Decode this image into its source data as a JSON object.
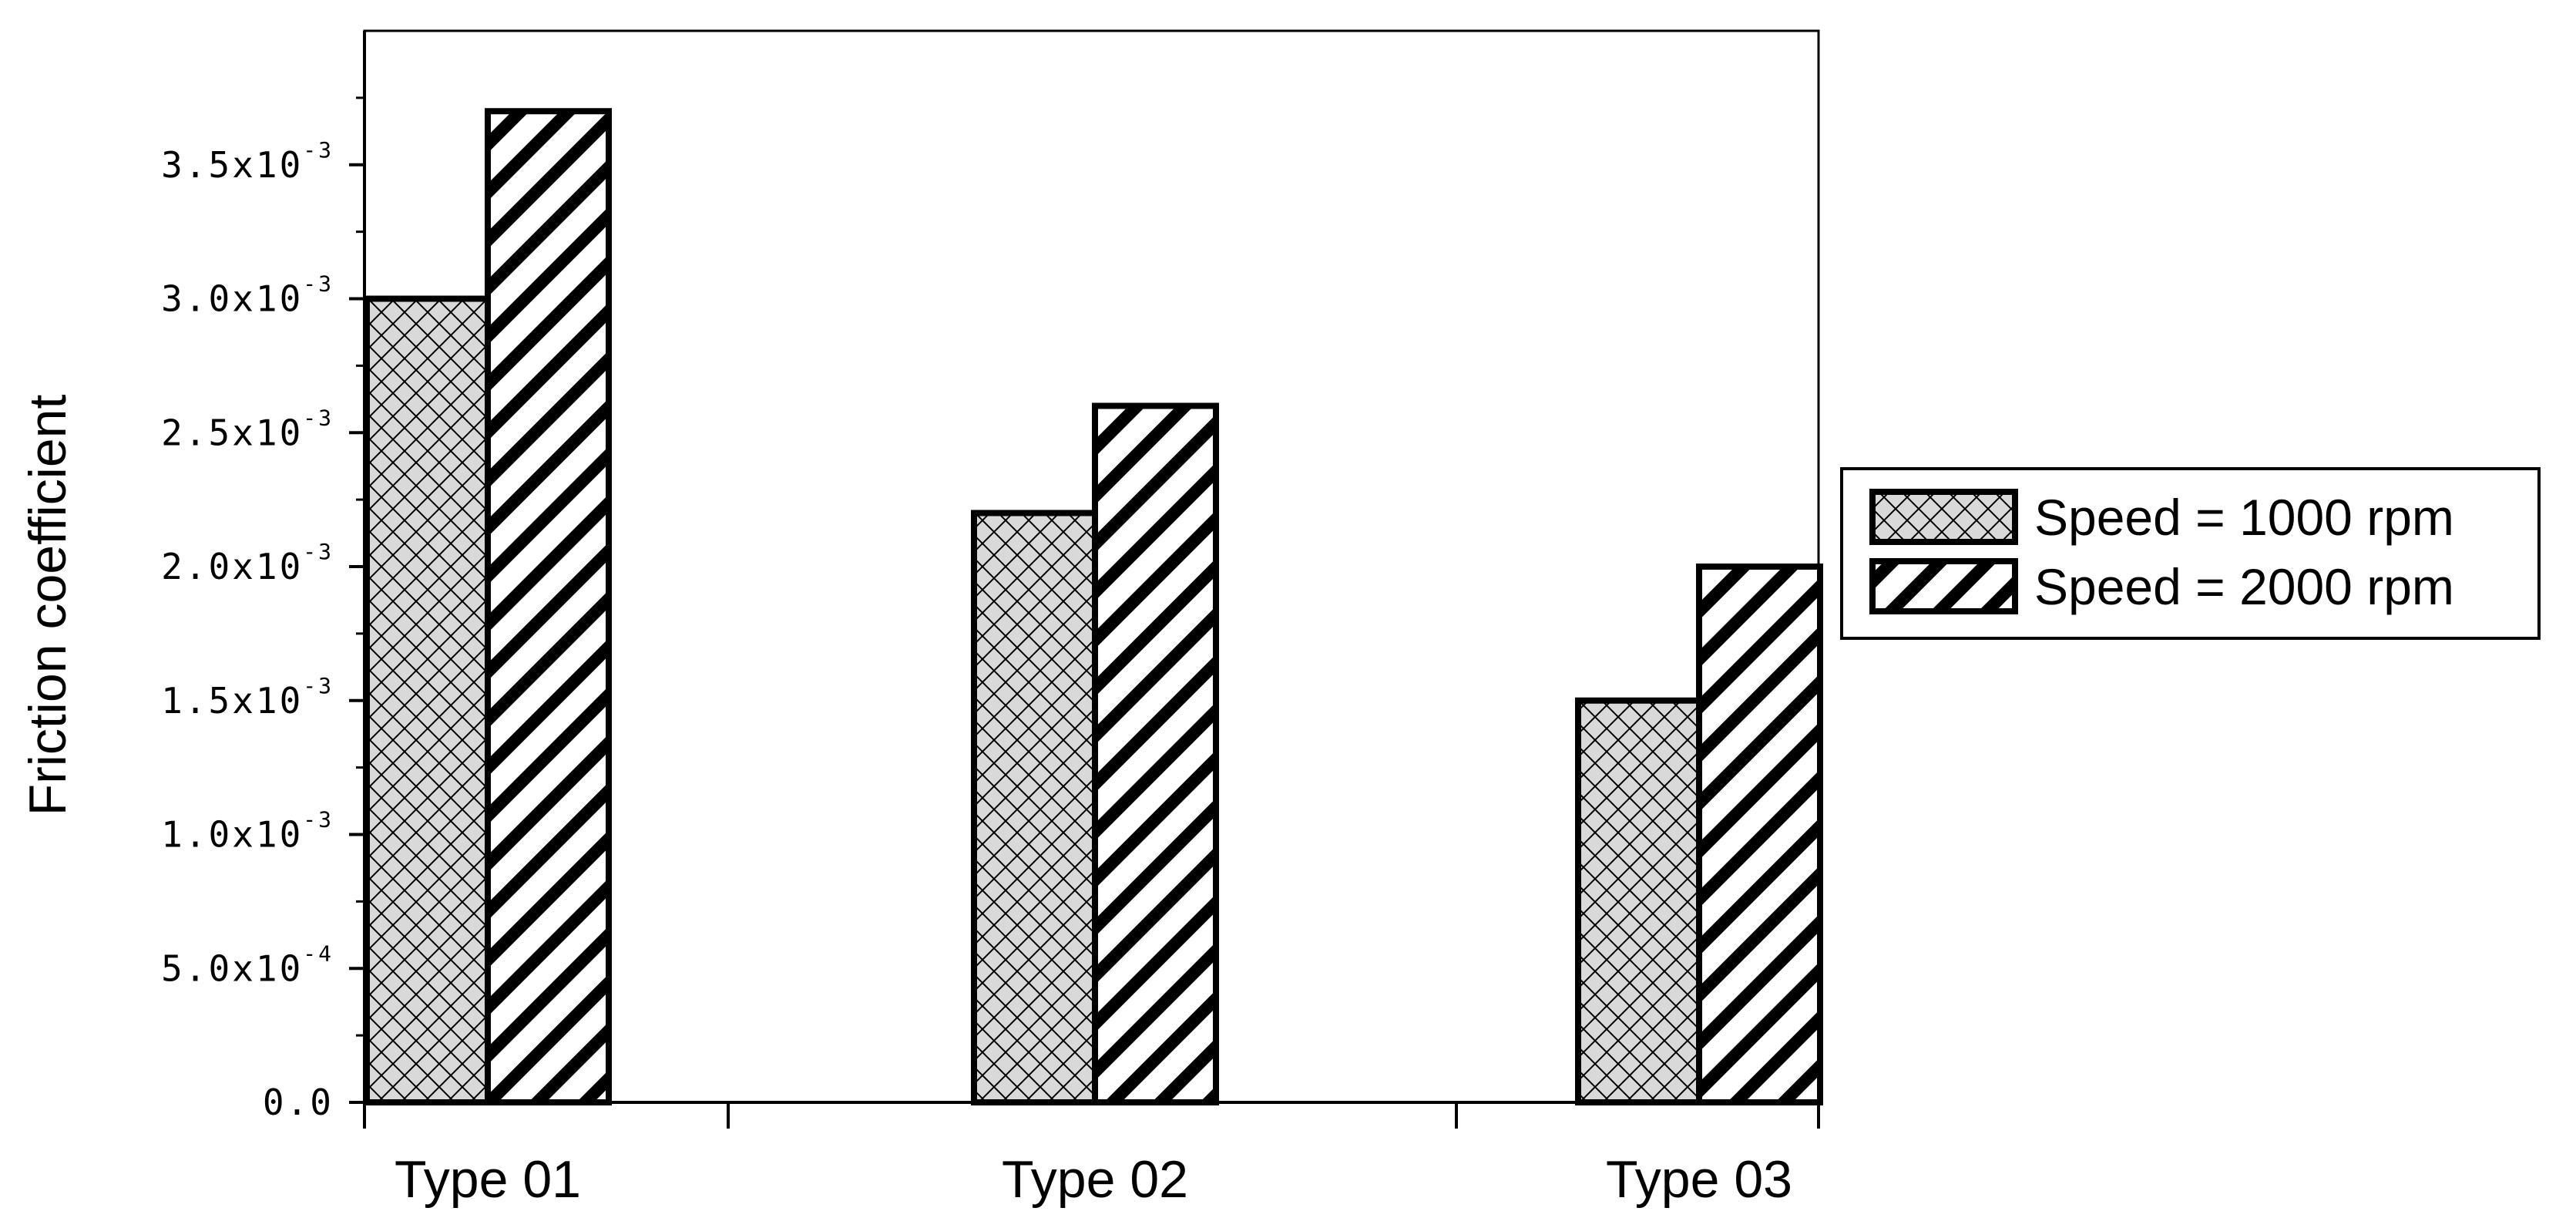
{
  "chart_data": {
    "type": "bar",
    "title": "",
    "xlabel": "",
    "ylabel": "Friction coefficient",
    "categories": [
      "Type 01",
      "Type 02",
      "Type 03"
    ],
    "series": [
      {
        "name": "Speed = 1000 rpm",
        "values": [
          0.003,
          0.0022,
          0.0015
        ],
        "pattern": "crosshatch",
        "fill": "#d9d9d9"
      },
      {
        "name": "Speed = 2000 rpm",
        "values": [
          0.0037,
          0.0026,
          0.002
        ],
        "pattern": "diagonal",
        "fill": "#ffffff"
      }
    ],
    "ylim": [
      0,
      0.004
    ],
    "yticks": [
      {
        "value": 0.0,
        "mantissa": "0.0",
        "exp": ""
      },
      {
        "value": 0.0005,
        "mantissa": "5.0x10",
        "exp": "-4"
      },
      {
        "value": 0.001,
        "mantissa": "1.0x10",
        "exp": "-3"
      },
      {
        "value": 0.0015,
        "mantissa": "1.5x10",
        "exp": "-3"
      },
      {
        "value": 0.002,
        "mantissa": "2.0x10",
        "exp": "-3"
      },
      {
        "value": 0.0025,
        "mantissa": "2.5x10",
        "exp": "-3"
      },
      {
        "value": 0.003,
        "mantissa": "3.0x10",
        "exp": "-3"
      },
      {
        "value": 0.0035,
        "mantissa": "3.5x10",
        "exp": "-3"
      }
    ],
    "grid": false,
    "legend_position": "right"
  }
}
